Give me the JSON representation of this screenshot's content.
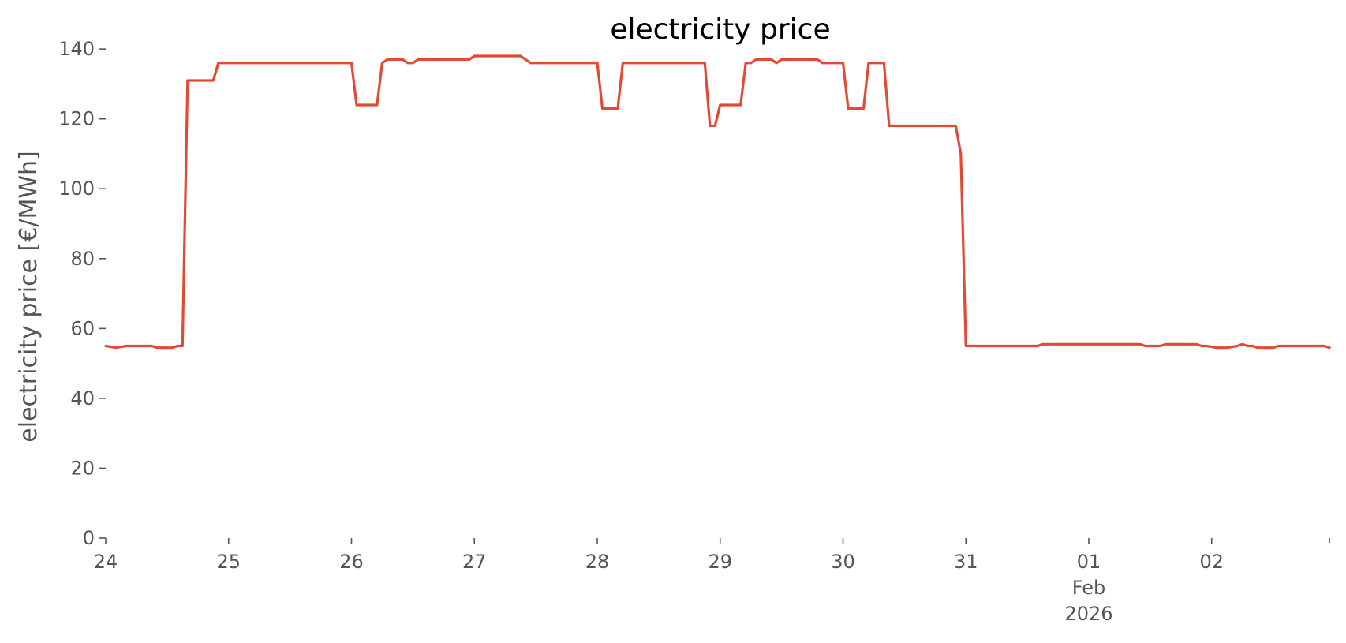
{
  "chart_data": {
    "type": "line",
    "title": "electricity price",
    "xlabel": "",
    "ylabel": "electricity price [€/MWh]",
    "ylim": [
      0,
      145
    ],
    "xlim": [
      "2026-01-24T00:00",
      "2026-02-02T23:00"
    ],
    "grid": false,
    "legend": "none",
    "x_ticks": [
      {
        "x": "2026-01-24T00:00",
        "lines": [
          "24"
        ]
      },
      {
        "x": "2026-01-25T00:00",
        "lines": [
          "25"
        ]
      },
      {
        "x": "2026-01-26T00:00",
        "lines": [
          "26"
        ]
      },
      {
        "x": "2026-01-27T00:00",
        "lines": [
          "27"
        ]
      },
      {
        "x": "2026-01-28T00:00",
        "lines": [
          "28"
        ]
      },
      {
        "x": "2026-01-29T00:00",
        "lines": [
          "29"
        ]
      },
      {
        "x": "2026-01-30T00:00",
        "lines": [
          "30"
        ]
      },
      {
        "x": "2026-01-31T00:00",
        "lines": [
          "31"
        ]
      },
      {
        "x": "2026-02-01T00:00",
        "lines": [
          "01",
          "Feb",
          "2026"
        ]
      },
      {
        "x": "2026-02-02T00:00",
        "lines": [
          "02"
        ]
      }
    ],
    "y_ticks": [
      0,
      20,
      40,
      60,
      80,
      100,
      120,
      140
    ],
    "series": [
      {
        "color": "#e24a33",
        "x": [
          "2026-01-24T00:00",
          "2026-01-24T02:00",
          "2026-01-24T04:00",
          "2026-01-24T09:00",
          "2026-01-24T10:00",
          "2026-01-24T13:00",
          "2026-01-24T14:00",
          "2026-01-24T15:00",
          "2026-01-24T16:00",
          "2026-01-24T21:00",
          "2026-01-24T22:00",
          "2026-01-25T00:00",
          "2026-01-26T00:00",
          "2026-01-26T01:00",
          "2026-01-26T05:00",
          "2026-01-26T06:00",
          "2026-01-26T07:00",
          "2026-01-26T10:00",
          "2026-01-26T11:00",
          "2026-01-26T12:00",
          "2026-01-26T13:00",
          "2026-01-26T23:00",
          "2026-01-27T00:00",
          "2026-01-27T09:00",
          "2026-01-27T10:00",
          "2026-01-27T11:00",
          "2026-01-28T00:00",
          "2026-01-28T01:00",
          "2026-01-28T04:00",
          "2026-01-28T05:00",
          "2026-01-28T21:00",
          "2026-01-28T22:00",
          "2026-01-28T23:00",
          "2026-01-29T00:00",
          "2026-01-29T04:00",
          "2026-01-29T05:00",
          "2026-01-29T06:00",
          "2026-01-29T07:00",
          "2026-01-29T10:00",
          "2026-01-29T11:00",
          "2026-01-29T12:00",
          "2026-01-29T19:00",
          "2026-01-29T20:00",
          "2026-01-29T23:00",
          "2026-01-30T00:00",
          "2026-01-30T01:00",
          "2026-01-30T04:00",
          "2026-01-30T05:00",
          "2026-01-30T08:00",
          "2026-01-30T09:00",
          "2026-01-30T22:00",
          "2026-01-30T23:00",
          "2026-01-31T00:00",
          "2026-01-31T14:00",
          "2026-01-31T15:00",
          "2026-02-01T10:00",
          "2026-02-01T11:00",
          "2026-02-01T14:00",
          "2026-02-01T15:00",
          "2026-02-01T21:00",
          "2026-02-01T22:00",
          "2026-02-01T23:00",
          "2026-02-02T01:00",
          "2026-02-02T03:00",
          "2026-02-02T05:00",
          "2026-02-02T06:00",
          "2026-02-02T07:00",
          "2026-02-02T08:00",
          "2026-02-02T09:00",
          "2026-02-02T12:00",
          "2026-02-02T13:00",
          "2026-02-02T22:00",
          "2026-02-02T23:00"
        ],
        "y": [
          55,
          54.5,
          55,
          55,
          54.5,
          54.5,
          55,
          55,
          131,
          131,
          136,
          136,
          136,
          124,
          124,
          136,
          137,
          137,
          136,
          136,
          137,
          137,
          138,
          138,
          137,
          136,
          136,
          123,
          123,
          136,
          136,
          118,
          118,
          124,
          124,
          136,
          136,
          137,
          137,
          136,
          137,
          137,
          136,
          136,
          136,
          123,
          123,
          136,
          136,
          118,
          118,
          110,
          55,
          55,
          55.5,
          55.5,
          55,
          55,
          55.5,
          55.5,
          55,
          55,
          54.5,
          54.5,
          55,
          55.5,
          55,
          55,
          54.5,
          54.5,
          55,
          55,
          54.5
        ]
      }
    ]
  }
}
